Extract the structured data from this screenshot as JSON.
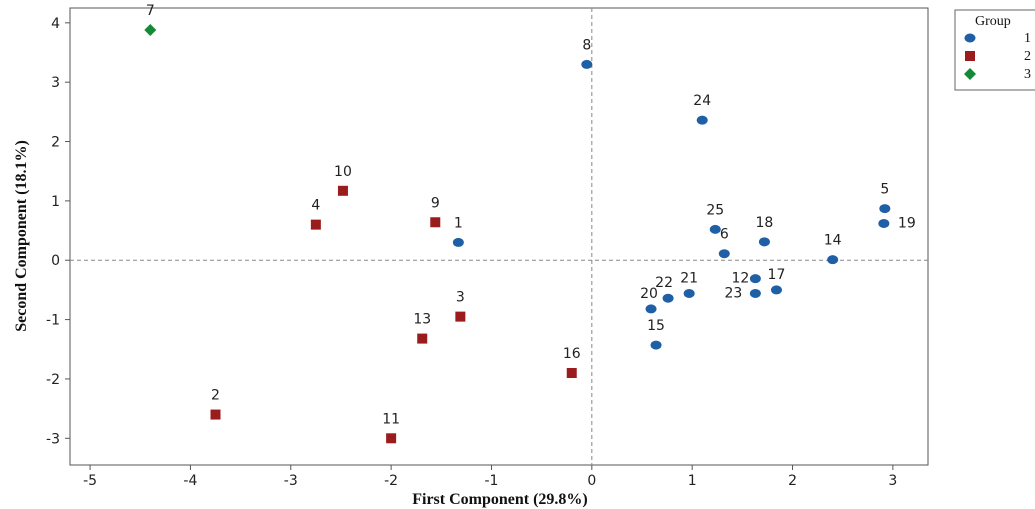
{
  "chart_data": {
    "type": "scatter",
    "title": "",
    "xlabel": "First Component (29.8%)",
    "ylabel": "Second Component (18.1%)",
    "xlim": [
      -5.2,
      3.35
    ],
    "ylim": [
      -3.45,
      4.25
    ],
    "xticks": [
      -5,
      -4,
      -3,
      -2,
      -1,
      0,
      1,
      2,
      3
    ],
    "yticks": [
      -3,
      -2,
      -1,
      0,
      1,
      2,
      3,
      4
    ],
    "reference_lines": {
      "x": 0,
      "y": 0
    },
    "grid": false,
    "legend": {
      "title": "Group",
      "position": "right",
      "entries": [
        "1",
        "2",
        "3"
      ]
    },
    "series": [
      {
        "name": "1",
        "color": "#1f5fa6",
        "marker": "circle",
        "points": [
          {
            "label": "1",
            "x": -1.33,
            "y": 0.3
          },
          {
            "label": "5",
            "x": 2.92,
            "y": 0.87
          },
          {
            "label": "6",
            "x": 1.32,
            "y": 0.11
          },
          {
            "label": "8",
            "x": -0.05,
            "y": 3.3
          },
          {
            "label": "12",
            "x": 1.63,
            "y": -0.31
          },
          {
            "label": "14",
            "x": 2.4,
            "y": 0.01
          },
          {
            "label": "15",
            "x": 0.64,
            "y": -1.43
          },
          {
            "label": "17",
            "x": 1.84,
            "y": -0.5
          },
          {
            "label": "18",
            "x": 1.72,
            "y": 0.31
          },
          {
            "label": "19",
            "x": 2.91,
            "y": 0.62
          },
          {
            "label": "20",
            "x": 0.59,
            "y": -0.82
          },
          {
            "label": "21",
            "x": 0.97,
            "y": -0.56
          },
          {
            "label": "22",
            "x": 0.76,
            "y": -0.64
          },
          {
            "label": "23",
            "x": 1.63,
            "y": -0.56
          },
          {
            "label": "24",
            "x": 1.1,
            "y": 2.36
          },
          {
            "label": "25",
            "x": 1.23,
            "y": 0.52
          }
        ]
      },
      {
        "name": "2",
        "color": "#9b1c1c",
        "marker": "square",
        "points": [
          {
            "label": "2",
            "x": -3.75,
            "y": -2.6
          },
          {
            "label": "3",
            "x": -1.31,
            "y": -0.95
          },
          {
            "label": "4",
            "x": -2.75,
            "y": 0.6
          },
          {
            "label": "9",
            "x": -1.56,
            "y": 0.64
          },
          {
            "label": "10",
            "x": -2.48,
            "y": 1.17
          },
          {
            "label": "11",
            "x": -2.0,
            "y": -3.0
          },
          {
            "label": "13",
            "x": -1.69,
            "y": -1.32
          },
          {
            "label": "16",
            "x": -0.2,
            "y": -1.9
          }
        ]
      },
      {
        "name": "3",
        "color": "#138a36",
        "marker": "diamond",
        "points": [
          {
            "label": "7",
            "x": -4.4,
            "y": 3.88
          }
        ]
      }
    ]
  }
}
